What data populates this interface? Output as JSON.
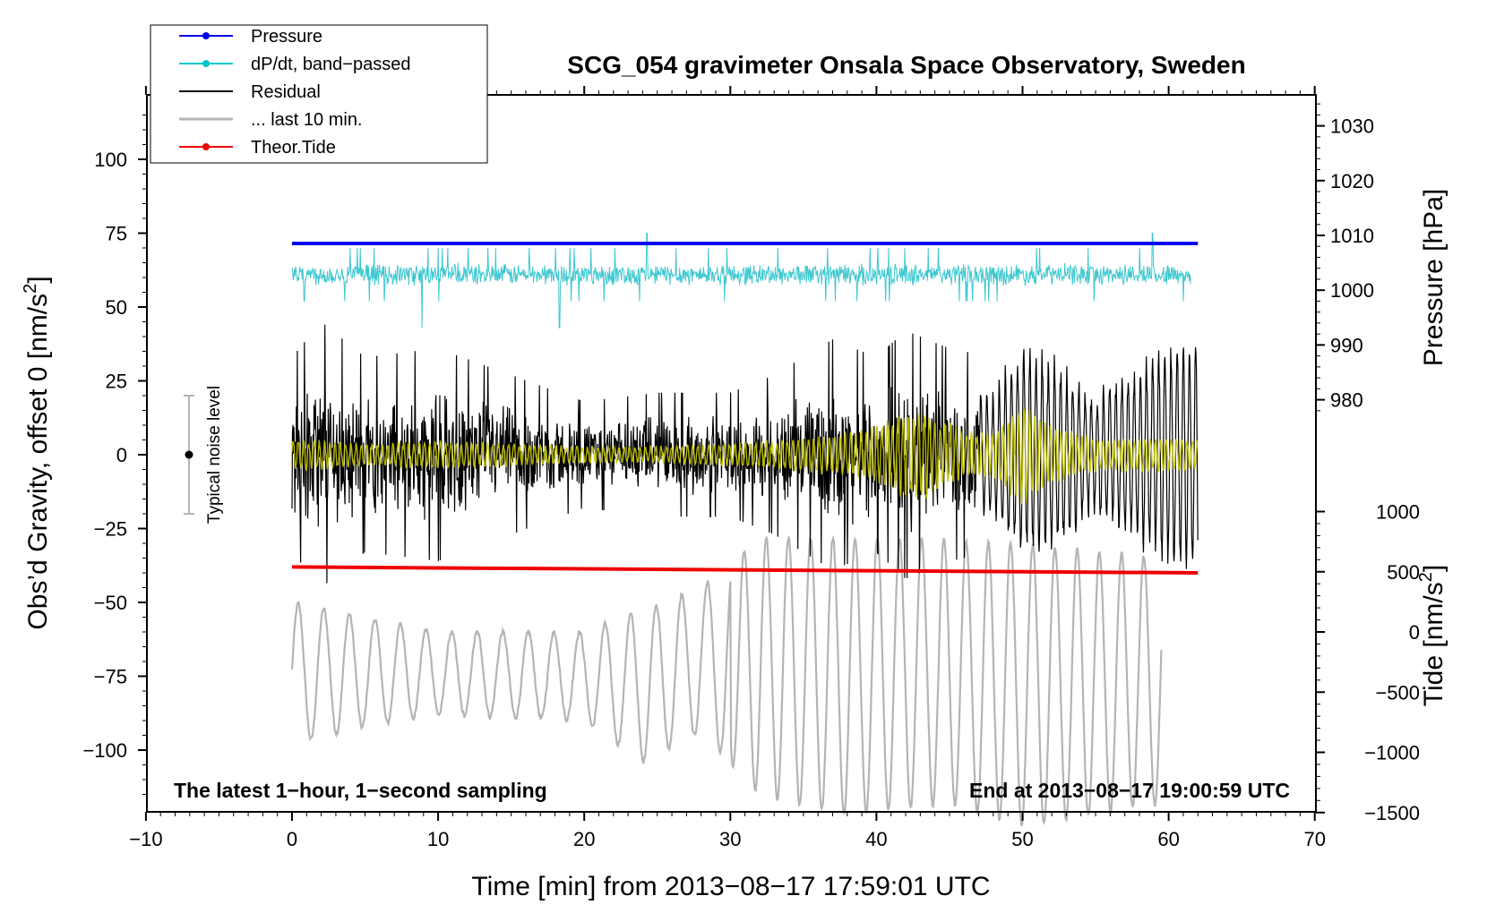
{
  "chart_data": {
    "type": "line",
    "title": "SCG_054 gravimeter Onsala Space Observatory, Sweden",
    "xlabel": "Time [min] from 2013−08−17 17:59:01 UTC",
    "ylabel": "Obs’d Gravity, offset 0 [nm/s²]",
    "xlim": [
      -10,
      70
    ],
    "ylim": [
      -120,
      120
    ],
    "x_ticks": [
      -10,
      0,
      10,
      20,
      30,
      40,
      50,
      60,
      70
    ],
    "x_tick_labels": [
      "−10",
      "0",
      "10",
      "20",
      "30",
      "40",
      "50",
      "60",
      "70"
    ],
    "y_ticks": [
      -100,
      -75,
      -50,
      -25,
      0,
      25,
      50,
      75,
      100
    ],
    "y_tick_labels": [
      "−100",
      "−75",
      "−50",
      "−25",
      "0",
      "25",
      "50",
      "75",
      "100"
    ],
    "right_axes": {
      "pressure": {
        "label": "Pressure [hPa]",
        "ticks": [
          1030,
          1020,
          1010,
          1000,
          990,
          980
        ],
        "tick_labels": [
          "1030",
          "1020",
          "1010",
          "1000",
          "990",
          "980"
        ]
      },
      "tide": {
        "label": "Tide [nm/s²]",
        "ticks": [
          1000,
          500,
          0,
          -500,
          -1000,
          -1500
        ],
        "tick_labels": [
          "1000",
          "500",
          "0",
          "−500",
          "−1000",
          "−1500"
        ]
      }
    },
    "legend": [
      {
        "name": "Pressure",
        "color": "#0000ee",
        "marker": true
      },
      {
        "name": "dP/dt, band−passed",
        "color": "#00c8c8",
        "marker": true
      },
      {
        "name": "Residual",
        "color": "#000000",
        "marker": false
      },
      {
        "name": "... last 10 min.",
        "color": "#b4b4b4",
        "marker": false
      },
      {
        "name": "Theor.Tide",
        "color": "#ee0000",
        "marker": true
      }
    ],
    "series": [
      {
        "name": "Pressure",
        "color": "#0000ee",
        "x": [
          0,
          62
        ],
        "y": [
          71.5,
          71.5
        ]
      },
      {
        "name": "dP/dt, band-passed",
        "color": "#3ec8d0",
        "x_range": [
          0,
          61.5
        ],
        "center": 61,
        "amplitude": 4,
        "spikes": [
          {
            "x": 8.9,
            "y": 43
          },
          {
            "x": 18.3,
            "y": 43
          },
          {
            "x": 24.3,
            "y": 75
          },
          {
            "x": 58.9,
            "y": 75
          }
        ]
      },
      {
        "name": "Residual",
        "color": "#000000",
        "x_range": [
          0,
          62
        ],
        "envelope_x": [
          0,
          2,
          5,
          10,
          15,
          20,
          25,
          30,
          33,
          37,
          40,
          42,
          45,
          48,
          50,
          52,
          55,
          58,
          62
        ],
        "envelope_a": [
          22,
          30,
          22,
          24,
          18,
          12,
          14,
          14,
          18,
          26,
          22,
          28,
          24,
          22,
          38,
          34,
          20,
          32,
          44
        ]
      },
      {
        "name": "Residual (band-passed)",
        "color": "#c8c800",
        "x_range": [
          0,
          62
        ],
        "envelope_x": [
          0,
          5,
          10,
          15,
          20,
          25,
          30,
          35,
          38,
          40,
          42,
          43,
          46,
          48,
          50,
          52,
          55,
          62
        ],
        "envelope_a": [
          6,
          4,
          5,
          4,
          3,
          3,
          4,
          6,
          8,
          10,
          16,
          16,
          9,
          8,
          18,
          10,
          6,
          6
        ]
      },
      {
        "name": "... last 10 min.",
        "color": "#b4b4b4",
        "x_range": [
          0,
          59.5
        ],
        "peaks": [
          {
            "x": 2.3,
            "y": -50
          },
          {
            "x": 27,
            "y": -45
          },
          {
            "x": 30,
            "y": -30
          },
          {
            "x": 35,
            "y": -28
          },
          {
            "x": 40,
            "y": -28
          },
          {
            "x": 45,
            "y": -28
          },
          {
            "x": 52,
            "y": -30
          },
          {
            "x": 58,
            "y": -35
          }
        ],
        "troughs": [
          {
            "x": 1.3,
            "y": -95
          },
          {
            "x": 24,
            "y": -105
          },
          {
            "x": 31,
            "y": -115
          },
          {
            "x": 37,
            "y": -120
          },
          {
            "x": 50,
            "y": -125
          },
          {
            "x": 57,
            "y": -120
          }
        ]
      },
      {
        "name": "Theor.Tide",
        "color": "#ee0000",
        "x": [
          0,
          62
        ],
        "y": [
          -38,
          -40
        ]
      }
    ],
    "noise_bar": {
      "label": "Typical noise level",
      "x": -7,
      "y_low": -20,
      "y_high": 20,
      "center": 0
    },
    "annotations": [
      {
        "text": "The latest 1−hour, 1−second sampling",
        "position": "bottom-left"
      },
      {
        "text": "End at 2013−08−17 19:00:59 UTC",
        "position": "bottom-right"
      }
    ],
    "grid": false,
    "legend_position": "top-left"
  }
}
